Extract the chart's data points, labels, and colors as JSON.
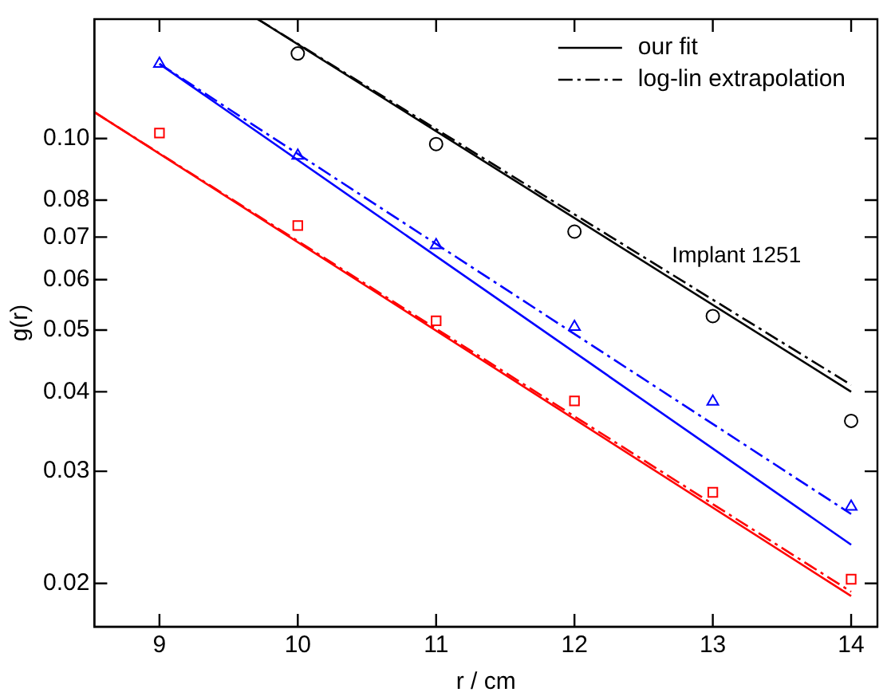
{
  "chart_data": {
    "type": "scatter",
    "xlabel": "r / cm",
    "ylabel": "g(r)",
    "log": "y",
    "xlim": [
      8.53,
      14.19
    ],
    "xticks": [
      9,
      10,
      11,
      12,
      13,
      14
    ],
    "ylim": [
      0.0171,
      0.154
    ],
    "yticks": [
      0.02,
      0.03,
      0.04,
      0.05,
      0.06,
      0.07,
      0.08,
      {
        "value": 0.1,
        "label": "0.10"
      }
    ],
    "grid": false,
    "legend": "top right",
    "annotations": [
      "Implant 1251"
    ],
    "series": [
      {
        "type": "scatter",
        "marker": "circle",
        "color": "#000000",
        "x": [
          10,
          11,
          12,
          13,
          14
        ],
        "values": [
          0.136,
          0.098,
          0.0714,
          0.0526,
          0.036
        ]
      },
      {
        "type": "scatter",
        "marker": "triangle",
        "color": "#0000ff",
        "x": [
          9,
          10,
          11,
          12,
          13,
          14
        ],
        "values": [
          0.131,
          0.094,
          0.068,
          0.0506,
          0.0386,
          0.0264
        ]
      },
      {
        "type": "scatter",
        "marker": "square",
        "color": "#ff0000",
        "x": [
          9,
          10,
          11,
          12,
          13,
          14
        ],
        "values": [
          0.102,
          0.073,
          0.0517,
          0.0387,
          0.0278,
          0.0203
        ]
      },
      {
        "type": "line",
        "name": "our fit",
        "line_style": "solid",
        "color": "#000000",
        "x": [
          9.71,
          14
        ],
        "values": [
          0.154,
          0.04
        ]
      },
      {
        "type": "line",
        "name": "log-lin extrapolation",
        "line_style": "dashed",
        "color": "#000000",
        "x": [
          9.71,
          14
        ],
        "values": [
          0.154,
          0.041
        ]
      },
      {
        "type": "line",
        "line_style": "solid",
        "color": "#0000ff",
        "x": [
          9,
          14
        ],
        "values": [
          0.131,
          0.023
        ]
      },
      {
        "type": "line",
        "line_style": "dashed",
        "color": "#0000ff",
        "x": [
          9,
          14
        ],
        "values": [
          0.131,
          0.0257
        ]
      },
      {
        "type": "line",
        "line_style": "solid",
        "color": "#ff0000",
        "x": [
          8.53,
          14
        ],
        "values": [
          0.11,
          0.0191
        ]
      },
      {
        "type": "line",
        "line_style": "dashed",
        "color": "#ff0000",
        "x": [
          8.53,
          14
        ],
        "values": [
          0.11,
          0.0194
        ]
      }
    ]
  }
}
